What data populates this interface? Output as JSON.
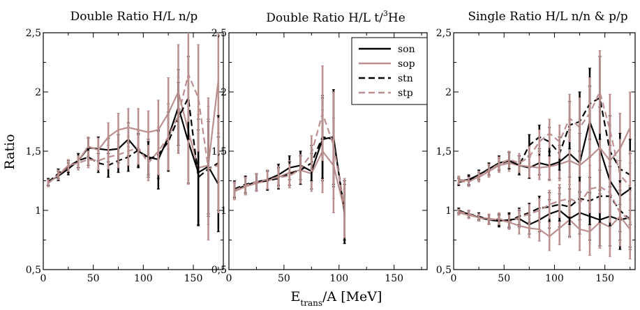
{
  "figure": {
    "ylabel": "Ratio",
    "xlabel_main": "E",
    "xlabel_sub": "trans",
    "xlabel_rest": "/A [MeV]"
  },
  "colors": {
    "black": "#000000",
    "pink": "#bc8f8f"
  },
  "chart_data": [
    {
      "type": "line",
      "title": "Double Ratio H/L n/p",
      "xlim": [
        0,
        180
      ],
      "ylim": [
        0.5,
        2.5
      ],
      "xticks": [
        0,
        50,
        100,
        150
      ],
      "yticks": [
        0.5,
        1,
        1.5,
        2,
        2.5
      ],
      "xtick_labels": [
        "0",
        "50",
        "100",
        "150"
      ],
      "ytick_labels": [
        "0,5",
        "1",
        "1,5",
        "2",
        "2,5"
      ],
      "series": [
        {
          "name": "son",
          "color": "#000000",
          "dash": false,
          "x": [
            5,
            15,
            25,
            35,
            45,
            55,
            65,
            75,
            85,
            95,
            105,
            115,
            125,
            135,
            145,
            155,
            165,
            175
          ],
          "y": [
            1.24,
            1.29,
            1.35,
            1.42,
            1.53,
            1.52,
            1.51,
            1.52,
            1.6,
            1.5,
            1.45,
            1.43,
            1.62,
            1.87,
            1.58,
            1.32,
            1.37,
            1.22
          ],
          "err": [
            0.03,
            0.04,
            0.05,
            0.06,
            0.08,
            0.1,
            0.1,
            0.12,
            0.14,
            0.14,
            0.15,
            0.25,
            0.28,
            0.32,
            0.35,
            0.45,
            0.4,
            0.4
          ]
        },
        {
          "name": "sop",
          "color": "#bc8f8f",
          "dash": false,
          "x": [
            5,
            15,
            25,
            35,
            45,
            55,
            65,
            75,
            85,
            95,
            105,
            115,
            125,
            135,
            145,
            155,
            165,
            175
          ],
          "y": [
            1.23,
            1.3,
            1.37,
            1.42,
            1.54,
            1.51,
            1.62,
            1.68,
            1.7,
            1.68,
            1.66,
            1.68,
            1.82,
            2.0,
            1.67,
            1.36,
            1.38,
            2.1
          ],
          "err": [
            0.03,
            0.04,
            0.05,
            0.06,
            0.08,
            0.1,
            0.12,
            0.14,
            0.16,
            0.18,
            0.18,
            0.25,
            0.3,
            0.4,
            0.45,
            0.45,
            0.5,
            0.45
          ]
        },
        {
          "name": "stn",
          "color": "#000000",
          "dash": true,
          "x": [
            5,
            15,
            25,
            35,
            45,
            55,
            65,
            75,
            85,
            95,
            105,
            115,
            125,
            135,
            145,
            155,
            165,
            175
          ],
          "y": [
            1.24,
            1.31,
            1.37,
            1.42,
            1.45,
            1.4,
            1.38,
            1.42,
            1.45,
            1.51,
            1.43,
            1.47,
            1.58,
            1.78,
            1.95,
            1.28,
            1.35,
            1.4
          ],
          "err": [
            0.03,
            0.04,
            0.05,
            0.06,
            0.07,
            0.08,
            0.1,
            0.1,
            0.12,
            0.14,
            0.15,
            0.2,
            0.25,
            0.3,
            0.35,
            0.4,
            0.4,
            0.4
          ]
        },
        {
          "name": "stp",
          "color": "#bc8f8f",
          "dash": true,
          "x": [
            5,
            15,
            25,
            35,
            45,
            55,
            65,
            75,
            85,
            95,
            105,
            115,
            125,
            135,
            145,
            155,
            165,
            175
          ],
          "y": [
            1.23,
            1.3,
            1.38,
            1.4,
            1.43,
            1.42,
            1.45,
            1.47,
            1.5,
            1.53,
            1.4,
            1.5,
            1.62,
            1.8,
            2.15,
            1.95,
            1.35,
            1.38
          ],
          "err": [
            0.03,
            0.04,
            0.05,
            0.06,
            0.07,
            0.08,
            0.1,
            0.11,
            0.12,
            0.14,
            0.15,
            0.2,
            0.28,
            0.32,
            0.4,
            0.45,
            0.6,
            0.4
          ]
        }
      ]
    },
    {
      "type": "line",
      "title_main": "Double Ratio H/L t/",
      "title_sup": "3",
      "title_rest": "He",
      "xlim": [
        0,
        180
      ],
      "ylim": [
        0.5,
        2.5
      ],
      "xticks": [
        0,
        50,
        100,
        150
      ],
      "yticks": [
        0.5,
        1,
        1.5,
        2,
        2.5
      ],
      "xtick_labels": [
        "0",
        "50",
        "100",
        "150"
      ],
      "ytick_labels": [
        "0,5",
        "1",
        "1,5",
        "2",
        "2,5"
      ],
      "legend": {
        "placement": "top-right",
        "entries": [
          "son",
          "sop",
          "stn",
          "stp"
        ]
      },
      "series": [
        {
          "name": "son",
          "color": "#000000",
          "dash": false,
          "x": [
            5,
            15,
            25,
            35,
            45,
            55,
            65,
            75,
            85,
            95,
            105
          ],
          "y": [
            1.17,
            1.21,
            1.24,
            1.26,
            1.3,
            1.36,
            1.38,
            1.33,
            1.6,
            1.62,
            0.97
          ],
          "err": [
            0.07,
            0.07,
            0.07,
            0.08,
            0.09,
            0.1,
            0.12,
            0.15,
            0.35,
            0.4,
            0.25
          ]
        },
        {
          "name": "sop",
          "color": "#bc8f8f",
          "dash": false,
          "x": [
            5,
            15,
            25,
            35,
            45,
            55,
            65,
            75,
            85,
            95,
            105
          ],
          "y": [
            1.16,
            1.2,
            1.23,
            1.25,
            1.28,
            1.32,
            1.34,
            1.31,
            1.5,
            1.38,
            1.0
          ],
          "err": [
            0.07,
            0.07,
            0.07,
            0.08,
            0.09,
            0.1,
            0.12,
            0.15,
            0.35,
            0.4,
            0.25
          ]
        },
        {
          "name": "stn",
          "color": "#000000",
          "dash": true,
          "x": [
            5,
            15,
            25,
            35,
            45,
            55,
            65,
            75,
            85,
            95,
            105
          ],
          "y": [
            1.18,
            1.22,
            1.24,
            1.25,
            1.27,
            1.31,
            1.34,
            1.4,
            1.62,
            1.6,
            1.0
          ],
          "err": [
            0.07,
            0.07,
            0.07,
            0.08,
            0.09,
            0.1,
            0.12,
            0.15,
            0.35,
            0.4,
            0.25
          ]
        },
        {
          "name": "stp",
          "color": "#bc8f8f",
          "dash": true,
          "x": [
            5,
            15,
            25,
            35,
            45,
            55,
            65,
            75,
            85,
            95,
            105
          ],
          "y": [
            1.17,
            1.21,
            1.24,
            1.26,
            1.28,
            1.29,
            1.35,
            1.48,
            1.82,
            1.55,
            1.02
          ],
          "err": [
            0.07,
            0.07,
            0.07,
            0.08,
            0.09,
            0.1,
            0.12,
            0.15,
            0.4,
            0.45,
            0.25
          ]
        }
      ]
    },
    {
      "type": "line",
      "title": "Single Ratio H/L n/n & p/p",
      "xlim": [
        0,
        180
      ],
      "ylim": [
        0.5,
        2.5
      ],
      "xticks": [
        0,
        50,
        100,
        150
      ],
      "yticks": [
        0.5,
        1,
        1.5,
        2,
        2.5
      ],
      "xtick_labels": [
        "0",
        "50",
        "100",
        "150"
      ],
      "ytick_labels": [
        "0,5",
        "1",
        "1,5",
        "2",
        "2,5"
      ],
      "series": [
        {
          "name": "son",
          "color": "#000000",
          "dash": false,
          "x": [
            5,
            15,
            25,
            35,
            45,
            55,
            65,
            75,
            85,
            95,
            105,
            115,
            125,
            135,
            145,
            155,
            165,
            175
          ],
          "y": [
            1.25,
            1.26,
            1.3,
            1.35,
            1.4,
            1.42,
            1.38,
            1.36,
            1.4,
            1.38,
            1.41,
            1.48,
            1.4,
            1.75,
            1.52,
            1.25,
            1.12,
            1.18
          ],
          "err": [
            0.03,
            0.04,
            0.04,
            0.05,
            0.06,
            0.07,
            0.08,
            0.09,
            0.1,
            0.12,
            0.14,
            0.2,
            0.25,
            0.3,
            0.35,
            0.3,
            0.3,
            0.3
          ]
        },
        {
          "name": "sop",
          "color": "#bc8f8f",
          "dash": false,
          "x": [
            5,
            15,
            25,
            35,
            45,
            55,
            65,
            75,
            85,
            95,
            105,
            115,
            125,
            135,
            145,
            155,
            165,
            175
          ],
          "y": [
            1.26,
            1.25,
            1.28,
            1.33,
            1.38,
            1.4,
            1.38,
            1.37,
            1.36,
            1.37,
            1.39,
            1.42,
            1.38,
            1.45,
            1.53,
            1.42,
            1.52,
            1.7
          ],
          "err": [
            0.03,
            0.04,
            0.04,
            0.05,
            0.06,
            0.07,
            0.08,
            0.09,
            0.1,
            0.12,
            0.14,
            0.2,
            0.25,
            0.3,
            0.35,
            0.3,
            0.3,
            0.3
          ]
        },
        {
          "name": "stn",
          "color": "#000000",
          "dash": true,
          "x": [
            5,
            15,
            25,
            35,
            45,
            55,
            65,
            75,
            85,
            95,
            105,
            115,
            125,
            135,
            145,
            155,
            165,
            175
          ],
          "y": [
            1.24,
            1.25,
            1.3,
            1.35,
            1.39,
            1.42,
            1.38,
            1.55,
            1.62,
            1.58,
            1.48,
            1.72,
            1.75,
            1.9,
            1.95,
            1.5,
            1.35,
            1.3
          ],
          "err": [
            0.03,
            0.04,
            0.04,
            0.05,
            0.06,
            0.07,
            0.08,
            0.09,
            0.1,
            0.12,
            0.14,
            0.2,
            0.25,
            0.3,
            0.35,
            0.3,
            0.3,
            0.3
          ]
        },
        {
          "name": "stp",
          "color": "#bc8f8f",
          "dash": true,
          "x": [
            5,
            15,
            25,
            35,
            45,
            55,
            65,
            75,
            85,
            95,
            105,
            115,
            125,
            135,
            145,
            155,
            165,
            175
          ],
          "y": [
            1.25,
            1.24,
            1.29,
            1.34,
            1.39,
            1.43,
            1.4,
            1.45,
            1.58,
            1.65,
            1.58,
            1.78,
            1.7,
            1.82,
            2.0,
            1.68,
            1.3,
            1.2
          ],
          "err": [
            0.03,
            0.04,
            0.04,
            0.05,
            0.06,
            0.07,
            0.08,
            0.09,
            0.1,
            0.12,
            0.14,
            0.2,
            0.25,
            0.3,
            0.35,
            0.3,
            0.3,
            0.3
          ]
        },
        {
          "name": "son",
          "color": "#000000",
          "dash": false,
          "x": [
            5,
            15,
            25,
            35,
            45,
            55,
            65,
            75,
            85,
            95,
            105,
            115,
            125,
            135,
            145,
            155,
            165,
            175
          ],
          "y": [
            0.99,
            0.97,
            0.94,
            0.92,
            0.91,
            0.92,
            0.93,
            0.88,
            0.92,
            0.97,
            1.0,
            0.93,
            0.98,
            0.95,
            0.92,
            0.95,
            0.92,
            0.94
          ],
          "err": [
            0.02,
            0.03,
            0.03,
            0.04,
            0.05,
            0.06,
            0.07,
            0.08,
            0.1,
            0.12,
            0.14,
            0.15,
            0.18,
            0.2,
            0.22,
            0.25,
            0.25,
            0.25
          ]
        },
        {
          "name": "sop",
          "color": "#bc8f8f",
          "dash": false,
          "x": [
            5,
            15,
            25,
            35,
            45,
            55,
            65,
            75,
            85,
            95,
            105,
            115,
            125,
            135,
            145,
            155,
            165,
            175
          ],
          "y": [
            0.98,
            0.96,
            0.94,
            0.93,
            0.92,
            0.9,
            0.87,
            0.85,
            0.84,
            0.78,
            0.85,
            0.92,
            0.84,
            0.82,
            0.9,
            0.86,
            0.95,
            0.84
          ],
          "err": [
            0.02,
            0.03,
            0.03,
            0.04,
            0.05,
            0.06,
            0.07,
            0.08,
            0.1,
            0.12,
            0.14,
            0.15,
            0.18,
            0.2,
            0.22,
            0.25,
            0.25,
            0.25
          ]
        },
        {
          "name": "stn",
          "color": "#000000",
          "dash": true,
          "x": [
            5,
            15,
            25,
            35,
            45,
            55,
            65,
            75,
            85,
            95,
            105,
            115,
            125,
            135,
            145,
            155,
            165,
            175
          ],
          "y": [
            1.0,
            0.97,
            0.95,
            0.92,
            0.92,
            0.91,
            0.95,
            0.98,
            1.02,
            1.03,
            1.05,
            1.03,
            1.1,
            1.08,
            1.12,
            1.12,
            1.0,
            0.92
          ],
          "err": [
            0.02,
            0.03,
            0.03,
            0.04,
            0.05,
            0.06,
            0.07,
            0.08,
            0.1,
            0.12,
            0.14,
            0.15,
            0.18,
            0.2,
            0.22,
            0.25,
            0.25,
            0.25
          ]
        },
        {
          "name": "stp",
          "color": "#bc8f8f",
          "dash": true,
          "x": [
            5,
            15,
            25,
            35,
            45,
            55,
            65,
            75,
            85,
            95,
            105,
            115,
            125,
            135,
            145,
            155,
            165,
            175
          ],
          "y": [
            0.99,
            0.97,
            0.94,
            0.92,
            0.93,
            0.9,
            0.94,
            0.97,
            1.0,
            1.05,
            1.08,
            1.1,
            1.06,
            1.18,
            1.2,
            1.15,
            0.98,
            0.92
          ],
          "err": [
            0.02,
            0.03,
            0.03,
            0.04,
            0.05,
            0.06,
            0.07,
            0.08,
            0.1,
            0.12,
            0.14,
            0.15,
            0.18,
            0.2,
            0.22,
            0.25,
            0.25,
            0.25
          ]
        }
      ]
    }
  ]
}
